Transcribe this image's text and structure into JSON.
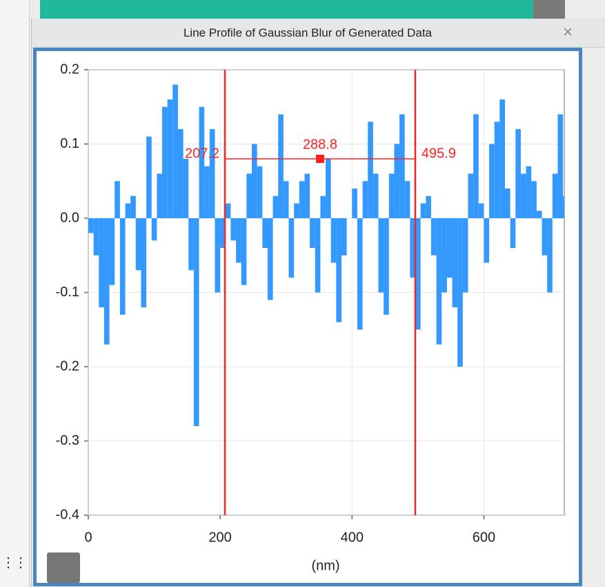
{
  "window": {
    "title": "Line Profile of Gaussian Blur of Generated Data"
  },
  "chart_data": {
    "type": "bar",
    "x_label": "(nm)",
    "color": "#3399ff",
    "x": [
      0,
      8,
      16,
      24,
      32,
      40,
      48,
      56,
      64,
      72,
      80,
      88,
      96,
      104,
      112,
      120,
      128,
      136,
      144,
      152,
      160,
      168,
      176,
      184,
      192,
      200,
      208,
      216,
      224,
      232,
      240,
      248,
      256,
      264,
      272,
      280,
      288,
      296,
      304,
      312,
      320,
      328,
      336,
      344,
      352,
      360,
      368,
      376,
      384,
      392,
      400,
      408,
      416,
      424,
      432,
      440,
      448,
      456,
      464,
      472,
      480,
      488,
      496,
      504,
      512,
      520,
      528,
      536,
      544,
      552,
      560,
      568,
      576,
      584,
      592,
      600,
      608,
      616,
      624,
      632,
      640,
      648,
      656,
      664,
      672,
      680,
      688,
      696,
      704,
      712,
      720
    ],
    "values": [
      -0.02,
      -0.05,
      -0.12,
      -0.17,
      -0.09,
      0.05,
      -0.13,
      0.02,
      0.03,
      -0.07,
      -0.12,
      0.11,
      -0.03,
      0.06,
      0.15,
      0.16,
      0.18,
      0.12,
      0.08,
      -0.07,
      -0.28,
      0.15,
      0.07,
      0.12,
      -0.1,
      -0.04,
      0.02,
      -0.03,
      -0.06,
      -0.09,
      0.06,
      0.1,
      0.07,
      -0.04,
      -0.11,
      0.03,
      0.14,
      0.05,
      -0.08,
      0.02,
      0.05,
      0.06,
      -0.04,
      -0.1,
      0.03,
      0.08,
      -0.06,
      -0.14,
      -0.05,
      0.0,
      0.04,
      -0.15,
      0.05,
      0.13,
      0.06,
      -0.1,
      -0.13,
      0.06,
      0.1,
      0.14,
      0.05,
      -0.08,
      -0.15,
      0.02,
      0.03,
      -0.05,
      -0.17,
      -0.1,
      -0.08,
      -0.12,
      -0.2,
      -0.1,
      0.06,
      0.14,
      0.02,
      -0.06,
      0.1,
      0.13,
      0.16,
      0.04,
      -0.04,
      0.12,
      0.06,
      0.07,
      0.05,
      0.01,
      -0.05,
      -0.1,
      0.06,
      0.14,
      0.03
    ],
    "xlim": [
      0,
      722
    ],
    "xticks": [
      0,
      200,
      400,
      600
    ],
    "ylim": [
      -0.4,
      0.2
    ],
    "yticks": [
      {
        "value": -0.4,
        "label": "-0.4"
      },
      {
        "value": -0.3,
        "label": "-0.3"
      },
      {
        "value": -0.2,
        "label": "-0.2"
      },
      {
        "value": -0.1,
        "label": "-0.1"
      },
      {
        "value": 0,
        "label": "0.0"
      },
      {
        "value": 0.1,
        "label": "0.1"
      },
      {
        "value": 0.2,
        "label": "0.2"
      }
    ],
    "grid": true,
    "cursors": {
      "x": [
        207.2,
        495.9
      ],
      "width": 288.8,
      "y": 0.08,
      "color": "#ff2020"
    }
  }
}
